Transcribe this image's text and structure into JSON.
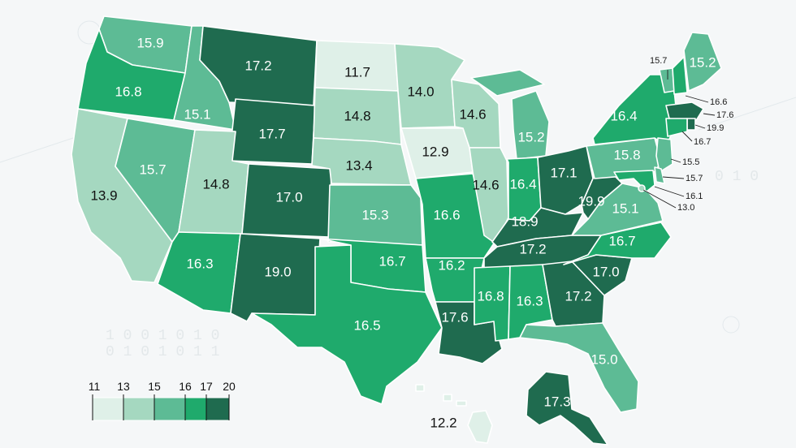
{
  "palette": {
    "11-13": "#dff0e8",
    "13-15": "#a5d8c0",
    "15-16": "#5dbb95",
    "16-17": "#1faa6c",
    "17-20": "#1f6b4f"
  },
  "legend": {
    "ticks": [
      "11",
      "13",
      "15",
      "16",
      "17",
      "20"
    ]
  },
  "states": [
    {
      "abbr": "WA",
      "value": 15.9
    },
    {
      "abbr": "OR",
      "value": 16.8
    },
    {
      "abbr": "CA",
      "value": 13.9
    },
    {
      "abbr": "ID",
      "value": 15.1
    },
    {
      "abbr": "NV",
      "value": 15.7
    },
    {
      "abbr": "MT",
      "value": 17.2
    },
    {
      "abbr": "WY",
      "value": 17.7
    },
    {
      "abbr": "UT",
      "value": 14.8
    },
    {
      "abbr": "AZ",
      "value": 16.3
    },
    {
      "abbr": "CO",
      "value": 17.0
    },
    {
      "abbr": "NM",
      "value": 19.0
    },
    {
      "abbr": "ND",
      "value": 11.7
    },
    {
      "abbr": "SD",
      "value": 14.8
    },
    {
      "abbr": "NE",
      "value": 13.4
    },
    {
      "abbr": "KS",
      "value": 15.3
    },
    {
      "abbr": "OK",
      "value": 16.7
    },
    {
      "abbr": "TX",
      "value": 16.5
    },
    {
      "abbr": "MN",
      "value": 14.0
    },
    {
      "abbr": "IA",
      "value": 12.9
    },
    {
      "abbr": "MO",
      "value": 16.6
    },
    {
      "abbr": "AR",
      "value": 16.2
    },
    {
      "abbr": "LA",
      "value": 17.6
    },
    {
      "abbr": "WI",
      "value": 14.6
    },
    {
      "abbr": "IL",
      "value": 14.6
    },
    {
      "abbr": "MI",
      "value": 15.2
    },
    {
      "abbr": "IN",
      "value": 16.4
    },
    {
      "abbr": "OH",
      "value": 17.1
    },
    {
      "abbr": "KY",
      "value": 18.9
    },
    {
      "abbr": "TN",
      "value": 17.2
    },
    {
      "abbr": "MS",
      "value": 16.8
    },
    {
      "abbr": "AL",
      "value": 16.3
    },
    {
      "abbr": "GA",
      "value": 17.2
    },
    {
      "abbr": "FL",
      "value": 15.0
    },
    {
      "abbr": "SC",
      "value": 17.0
    },
    {
      "abbr": "NC",
      "value": 16.7
    },
    {
      "abbr": "VA",
      "value": 15.1
    },
    {
      "abbr": "WV",
      "value": 19.9
    },
    {
      "abbr": "PA",
      "value": 15.8
    },
    {
      "abbr": "NY",
      "value": 16.4
    },
    {
      "abbr": "ME",
      "value": 15.2
    },
    {
      "abbr": "AK",
      "value": 17.3
    },
    {
      "abbr": "HI",
      "value": 12.2
    },
    {
      "abbr": "VT",
      "value": 15.7
    },
    {
      "abbr": "NH",
      "value": 16.6
    },
    {
      "abbr": "MA",
      "value": 17.6
    },
    {
      "abbr": "RI",
      "value": 19.9
    },
    {
      "abbr": "CT",
      "value": 16.7
    },
    {
      "abbr": "NJ",
      "value": 15.5
    },
    {
      "abbr": "DE",
      "value": 15.7
    },
    {
      "abbr": "MD",
      "value": 16.1
    },
    {
      "abbr": "DC",
      "value": 13.0
    }
  ]
}
